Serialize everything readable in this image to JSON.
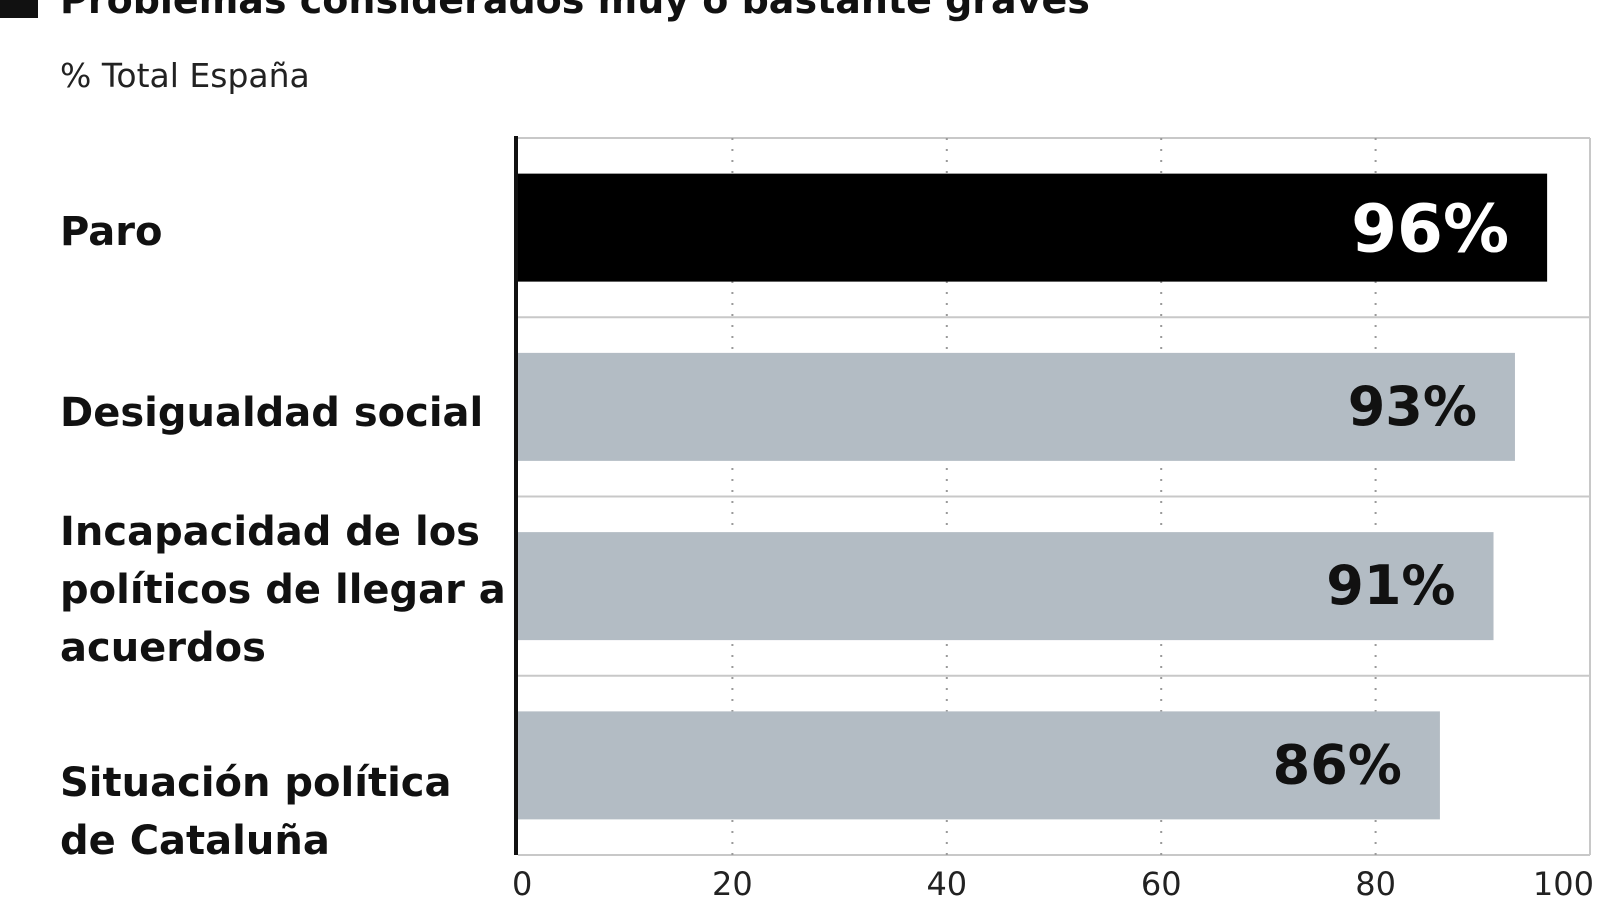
{
  "header": {
    "title": "Problemas considerados muy o bastante graves",
    "subtitle": "% Total España"
  },
  "chart_data": {
    "type": "bar",
    "orientation": "horizontal",
    "title": "Problemas considerados muy o bastante graves",
    "subtitle": "% Total España",
    "categories": [
      "Paro",
      "Desigualdad social",
      "Incapacidad de los políticos de llegar a acuerdos",
      "Situación política de Cataluña"
    ],
    "values": [
      96,
      93,
      91,
      86
    ],
    "value_labels": [
      "96%",
      "93%",
      "91%",
      "86%"
    ],
    "xlim": [
      0,
      100
    ],
    "x_ticks": [
      "0",
      "20",
      "40",
      "60",
      "80",
      "100"
    ],
    "grid": true,
    "xlabel": "",
    "ylabel": "",
    "colors": {
      "highlight": "#000000",
      "bar": "#b3bcc4",
      "highlight_label": "#ffffff",
      "bar_label": "#111111",
      "grid": "#c8c8c8"
    }
  }
}
